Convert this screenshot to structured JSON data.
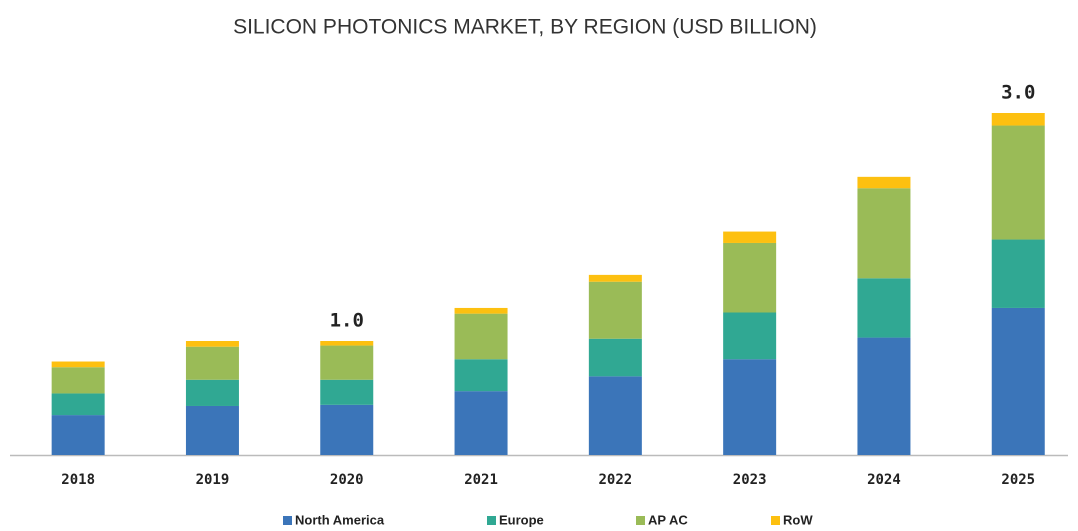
{
  "chart_data": {
    "type": "stacked_bar",
    "title": "SILICON PHOTONICS MARKET, BY REGION (USD BILLION)",
    "categories": [
      "2018",
      "2019",
      "2020",
      "2021",
      "2022",
      "2023",
      "2024",
      "2025"
    ],
    "series": [
      {
        "name": "North America",
        "color": "#3b75b9",
        "values": [
          0.35,
          0.43,
          0.44,
          0.56,
          0.69,
          0.84,
          1.03,
          1.29
        ]
      },
      {
        "name": "Europe",
        "color": "#30a893",
        "values": [
          0.19,
          0.23,
          0.22,
          0.28,
          0.33,
          0.41,
          0.52,
          0.6
        ]
      },
      {
        "name": "AP AC",
        "color": "#9abb57",
        "values": [
          0.23,
          0.29,
          0.3,
          0.4,
          0.5,
          0.61,
          0.79,
          1.0
        ]
      },
      {
        "name": "RoW",
        "color": "#fdc010",
        "values": [
          0.05,
          0.05,
          0.04,
          0.05,
          0.06,
          0.1,
          0.1,
          0.11
        ]
      }
    ],
    "total_labels": [
      null,
      null,
      "1.0",
      null,
      null,
      null,
      null,
      "3.0"
    ],
    "legend": "bottom"
  }
}
